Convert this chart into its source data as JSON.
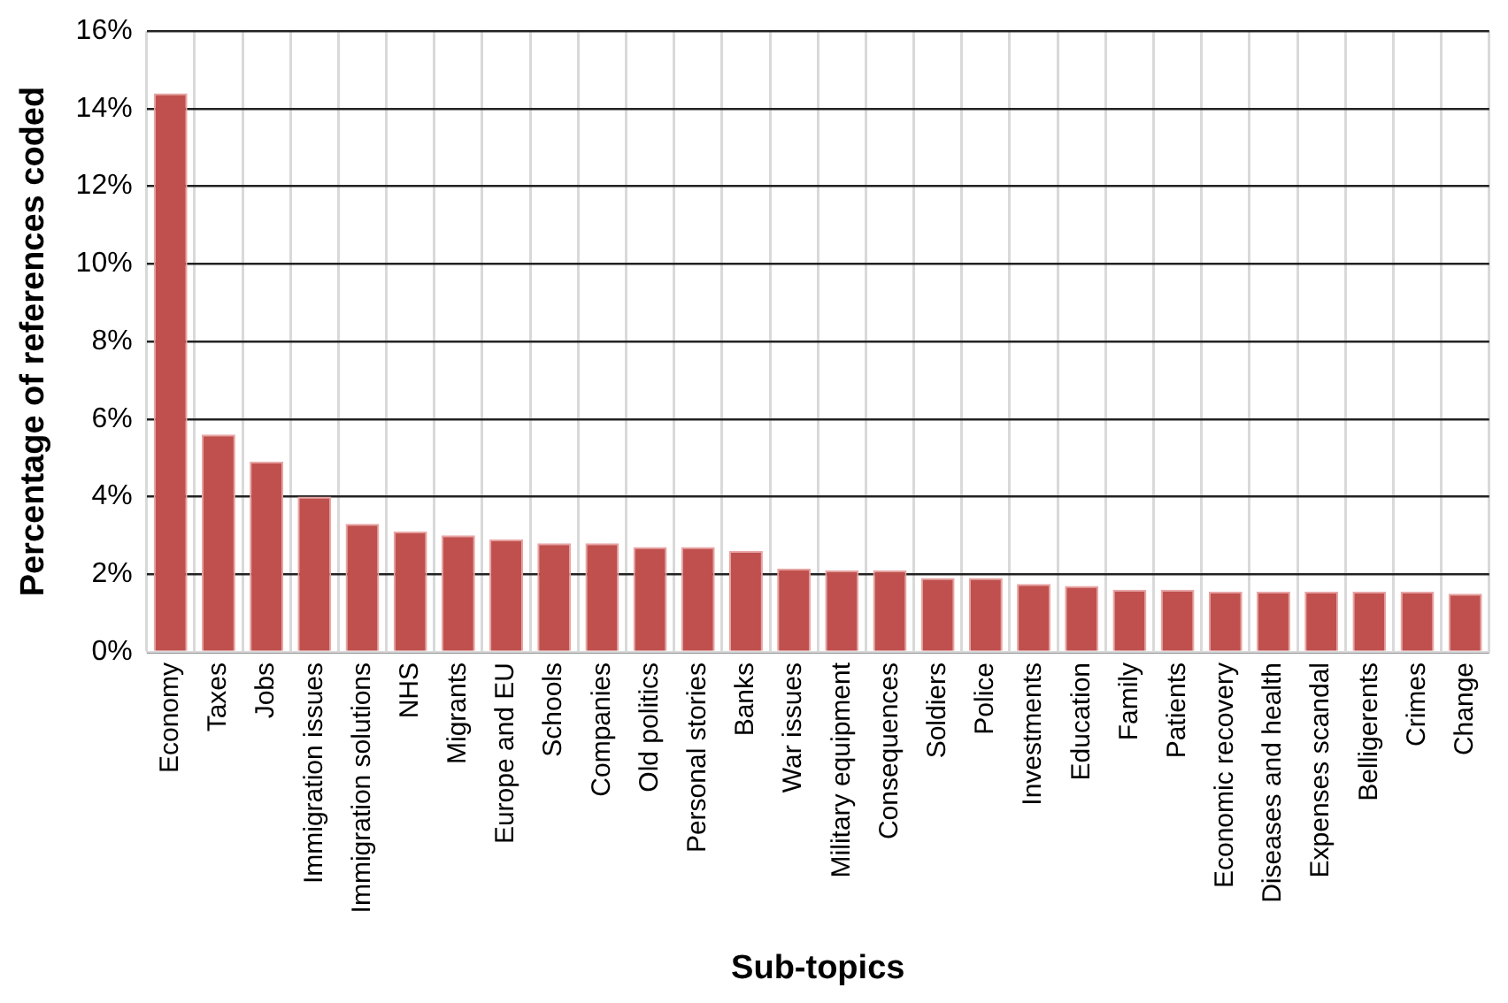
{
  "chart_data": {
    "type": "bar",
    "xlabel": "Sub-topics",
    "ylabel": "Percentage of references coded",
    "categories": [
      "Economy",
      "Taxes",
      "Jobs",
      "Immigration issues",
      "Immigration solutions",
      "NHS",
      "Migrants",
      "Europe and EU",
      "Schools",
      "Companies",
      "Old politics",
      "Personal stories",
      "Banks",
      "War issues",
      "Military equipment",
      "Consequences",
      "Soldiers",
      "Police",
      "Investments",
      "Education",
      "Family",
      "Patients",
      "Economic recovery",
      "Diseases and health",
      "Expenses scandal",
      "Belligerents",
      "Crimes",
      "Change"
    ],
    "values": [
      14.4,
      5.6,
      4.9,
      4.0,
      3.3,
      3.1,
      3.0,
      2.9,
      2.8,
      2.8,
      2.7,
      2.7,
      2.6,
      2.15,
      2.1,
      2.1,
      1.9,
      1.9,
      1.75,
      1.7,
      1.6,
      1.6,
      1.55,
      1.55,
      1.55,
      1.55,
      1.55,
      1.5
    ],
    "color": "#c0504d",
    "ylim": [
      0,
      16
    ],
    "yticks": [
      {
        "value": 0,
        "label": "0%"
      },
      {
        "value": 2,
        "label": "2%"
      },
      {
        "value": 4,
        "label": "4%"
      },
      {
        "value": 6,
        "label": "6%"
      },
      {
        "value": 8,
        "label": "8%"
      },
      {
        "value": 10,
        "label": "10%"
      },
      {
        "value": 12,
        "label": "12%"
      },
      {
        "value": 14,
        "label": "14%"
      },
      {
        "value": 16,
        "label": "16%"
      }
    ],
    "grid": true
  }
}
